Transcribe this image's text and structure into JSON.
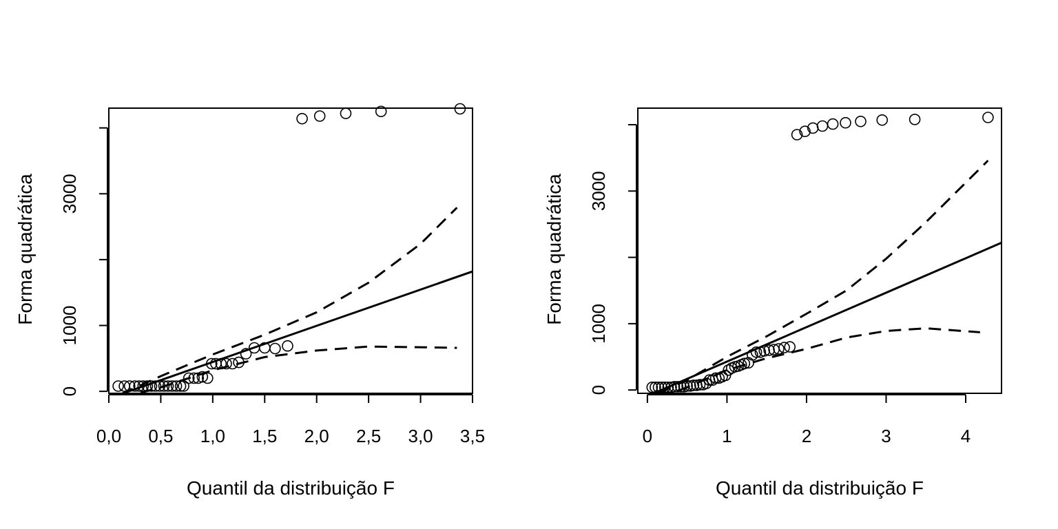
{
  "chart_data": [
    {
      "type": "scatter",
      "xlabel": "Quantil da distribuição F",
      "ylabel": "Forma quadrática",
      "xlim": [
        0.0,
        3.5
      ],
      "ylim": [
        -30,
        4300
      ],
      "xticks": [
        0.0,
        0.5,
        1.0,
        1.5,
        2.0,
        2.5,
        3.0,
        3.5
      ],
      "xtick_labels": [
        "0,0",
        "0,5",
        "1,0",
        "1,5",
        "2,0",
        "2,5",
        "3,0",
        "3,5"
      ],
      "yticks": [
        0,
        1000,
        2000,
        3000,
        4000
      ],
      "ytick_labels": [
        "0",
        "1000",
        "",
        "3000",
        ""
      ],
      "points": {
        "x": [
          0.09,
          0.15,
          0.2,
          0.25,
          0.29,
          0.33,
          0.37,
          0.41,
          0.45,
          0.49,
          0.53,
          0.57,
          0.61,
          0.65,
          0.69,
          0.72,
          0.77,
          0.82,
          0.86,
          0.9,
          0.95,
          0.99,
          1.03,
          1.08,
          1.13,
          1.19,
          1.25,
          1.32,
          1.4,
          1.5,
          1.6,
          1.72,
          1.86,
          2.03,
          2.28,
          2.62,
          3.38
        ],
        "y": [
          80,
          80,
          80,
          80,
          80,
          80,
          80,
          80,
          80,
          80,
          80,
          80,
          80,
          80,
          80,
          80,
          200,
          200,
          200,
          220,
          200,
          420,
          420,
          420,
          420,
          420,
          440,
          570,
          660,
          660,
          650,
          690,
          4140,
          4180,
          4220,
          4250,
          4290
        ]
      },
      "fit_line": {
        "x": [
          0.1,
          3.5
        ],
        "y": [
          -50,
          1820
        ]
      },
      "envelope_upper": {
        "x": [
          0.12,
          0.5,
          1.0,
          1.5,
          2.0,
          2.5,
          3.0,
          3.35
        ],
        "y": [
          -40,
          230,
          560,
          860,
          1200,
          1650,
          2240,
          2790
        ]
      },
      "envelope_lower": {
        "x": [
          0.12,
          0.5,
          1.0,
          1.5,
          2.0,
          2.5,
          3.0,
          3.35
        ],
        "y": [
          -100,
          60,
          320,
          520,
          620,
          680,
          670,
          660
        ]
      }
    },
    {
      "type": "scatter",
      "xlabel": "Quantil da distribuição F",
      "ylabel": "Forma quadrática",
      "xlim": [
        -0.12,
        4.45
      ],
      "ylim": [
        -50,
        4250
      ],
      "xticks": [
        0,
        1,
        2,
        3,
        4
      ],
      "xtick_labels": [
        "0",
        "1",
        "2",
        "3",
        "4"
      ],
      "yticks": [
        0,
        1000,
        2000,
        3000,
        4000
      ],
      "ytick_labels": [
        "0",
        "1000",
        "",
        "3000",
        ""
      ],
      "points": {
        "x": [
          0.06,
          0.1,
          0.14,
          0.18,
          0.22,
          0.26,
          0.3,
          0.34,
          0.38,
          0.42,
          0.46,
          0.5,
          0.54,
          0.58,
          0.62,
          0.66,
          0.7,
          0.74,
          0.78,
          0.82,
          0.86,
          0.9,
          0.94,
          0.98,
          1.02,
          1.06,
          1.1,
          1.14,
          1.18,
          1.22,
          1.27,
          1.32,
          1.37,
          1.42,
          1.47,
          1.53,
          1.59,
          1.65,
          1.72,
          1.79,
          1.88,
          1.98,
          2.08,
          2.2,
          2.33,
          2.49,
          2.68,
          2.95,
          3.36,
          4.28
        ],
        "y": [
          40,
          40,
          40,
          40,
          40,
          40,
          40,
          50,
          50,
          50,
          50,
          60,
          60,
          70,
          70,
          80,
          80,
          100,
          150,
          150,
          180,
          180,
          200,
          220,
          300,
          330,
          350,
          360,
          380,
          400,
          410,
          530,
          570,
          570,
          590,
          600,
          610,
          620,
          640,
          650,
          3850,
          3900,
          3950,
          3980,
          4010,
          4030,
          4050,
          4070,
          4080,
          4110
        ]
      },
      "fit_line": {
        "x": [
          0.1,
          4.45
        ],
        "y": [
          -40,
          2220
        ]
      },
      "envelope_upper": {
        "x": [
          0.15,
          0.5,
          1.0,
          1.5,
          2.0,
          2.5,
          3.0,
          3.5,
          4.28
        ],
        "y": [
          -40,
          150,
          500,
          810,
          1150,
          1500,
          1980,
          2530,
          3460
        ]
      },
      "envelope_lower": {
        "x": [
          0.15,
          0.5,
          1.0,
          1.5,
          2.0,
          2.5,
          3.0,
          3.5,
          4.18
        ],
        "y": [
          -110,
          40,
          300,
          480,
          620,
          790,
          890,
          930,
          870
        ]
      }
    }
  ]
}
